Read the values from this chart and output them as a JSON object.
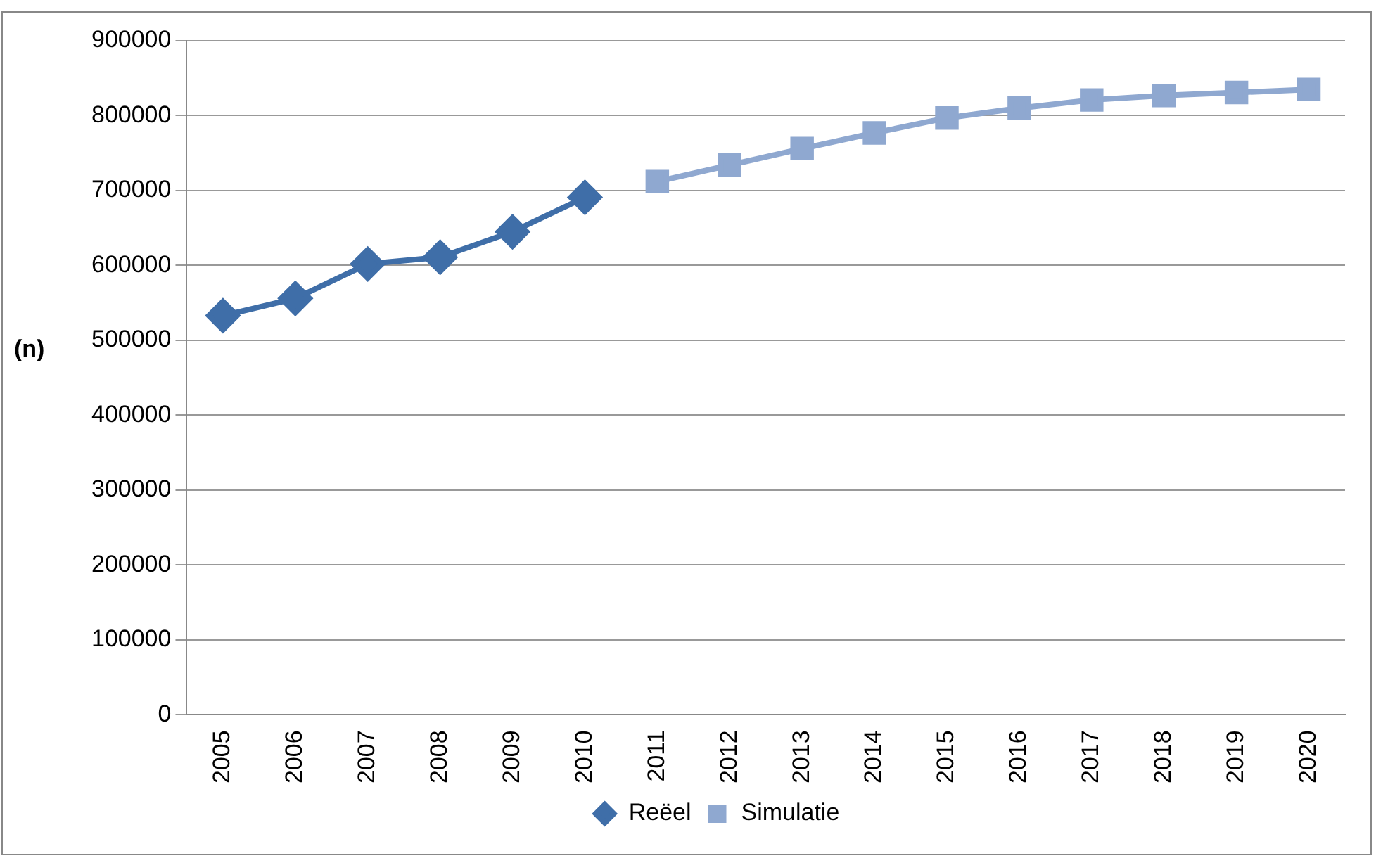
{
  "chart_data": {
    "type": "line",
    "ylabel": "(n)",
    "categories": [
      "2005",
      "2006",
      "2007",
      "2008",
      "2009",
      "2010",
      "2011",
      "2012",
      "2013",
      "2014",
      "2015",
      "2016",
      "2017",
      "2018",
      "2019",
      "2020"
    ],
    "series": [
      {
        "name": "Reëel",
        "color": "#3f6ea8",
        "marker": "diamond",
        "values": [
          533000,
          556000,
          602000,
          611000,
          645000,
          691000,
          null,
          null,
          null,
          null,
          null,
          null,
          null,
          null,
          null,
          null
        ]
      },
      {
        "name": "Simulatie",
        "color": "#8fa8d0",
        "marker": "square",
        "values": [
          null,
          null,
          null,
          null,
          null,
          null,
          712000,
          734000,
          756000,
          777000,
          797000,
          810000,
          821000,
          827000,
          831000,
          835000
        ]
      }
    ],
    "ylim": [
      0,
      900000
    ],
    "yticks": [
      0,
      100000,
      200000,
      300000,
      400000,
      500000,
      600000,
      700000,
      800000,
      900000
    ],
    "grid": "y",
    "legend": "bottom"
  }
}
